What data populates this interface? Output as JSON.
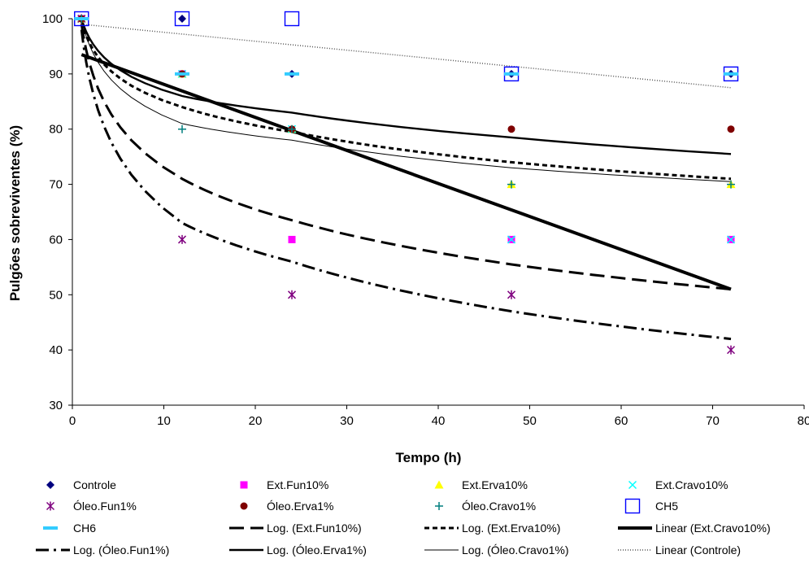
{
  "chart_data": {
    "type": "scatter",
    "xlabel": "Tempo (h)",
    "ylabel": "Pulgões sobreviventes (%)",
    "xlim": [
      0,
      80
    ],
    "ylim": [
      30,
      100
    ],
    "xticks": [
      "0",
      "10",
      "20",
      "30",
      "40",
      "50",
      "60",
      "70",
      "80"
    ],
    "yticks": [
      "30",
      "40",
      "50",
      "60",
      "70",
      "80",
      "90",
      "100"
    ],
    "grid": false,
    "legend_position": "bottom",
    "series": [
      {
        "name": "Controle",
        "marker": "diamond",
        "color": "#00007f",
        "points": [
          [
            1,
            100
          ],
          [
            12,
            100
          ],
          [
            24,
            90
          ],
          [
            48,
            90
          ],
          [
            72,
            90
          ]
        ]
      },
      {
        "name": "Ext.Fun10%",
        "marker": "square",
        "color": "#ff00ff",
        "points": [
          [
            1,
            100
          ],
          [
            12,
            90
          ],
          [
            24,
            60
          ],
          [
            48,
            60
          ],
          [
            72,
            60
          ]
        ]
      },
      {
        "name": "Ext.Erva10%",
        "marker": "triangle",
        "color": "#ffff00",
        "points": [
          [
            1,
            100
          ],
          [
            12,
            90
          ],
          [
            24,
            80
          ],
          [
            48,
            70
          ],
          [
            72,
            70
          ]
        ]
      },
      {
        "name": "Ext.Cravo10%",
        "marker": "x",
        "color": "#00ffff",
        "points": [
          [
            1,
            100
          ],
          [
            12,
            90
          ],
          [
            24,
            80
          ],
          [
            48,
            60
          ],
          [
            72,
            60
          ]
        ]
      },
      {
        "name": "Óleo.Fun1%",
        "marker": "star",
        "color": "#7f007f",
        "points": [
          [
            1,
            100
          ],
          [
            12,
            60
          ],
          [
            24,
            50
          ],
          [
            48,
            50
          ],
          [
            72,
            40
          ]
        ]
      },
      {
        "name": "Óleo.Erva1%",
        "marker": "circle",
        "color": "#7f0000",
        "points": [
          [
            1,
            100
          ],
          [
            12,
            90
          ],
          [
            24,
            80
          ],
          [
            48,
            80
          ],
          [
            72,
            80
          ]
        ]
      },
      {
        "name": "Óleo.Cravo1%",
        "marker": "plus",
        "color": "#007f7f",
        "points": [
          [
            1,
            100
          ],
          [
            12,
            80
          ],
          [
            24,
            80
          ],
          [
            48,
            70
          ],
          [
            72,
            70
          ]
        ]
      },
      {
        "name": "CH5",
        "marker": "open-square",
        "color": "#0000ff",
        "points": [
          [
            1,
            100
          ],
          [
            12,
            100
          ],
          [
            24,
            100
          ],
          [
            48,
            90
          ],
          [
            72,
            90
          ]
        ]
      },
      {
        "name": "CH6",
        "marker": "dash",
        "color": "#33ccff",
        "points": [
          [
            1,
            100
          ],
          [
            12,
            90
          ],
          [
            24,
            90
          ],
          [
            48,
            90
          ],
          [
            72,
            90
          ]
        ]
      }
    ],
    "trendlines": [
      {
        "name": "Log. (Ext.Fun10%)",
        "kind": "log",
        "style": "long-dash",
        "points": [
          [
            1,
            99
          ],
          [
            12,
            71
          ],
          [
            24,
            63.5
          ],
          [
            48,
            55.5
          ],
          [
            72,
            51
          ]
        ]
      },
      {
        "name": "Log. (Ext.Erva10%)",
        "kind": "log",
        "style": "short-dash",
        "points": [
          [
            1,
            99.5
          ],
          [
            12,
            84
          ],
          [
            24,
            79.5
          ],
          [
            48,
            74
          ],
          [
            72,
            71
          ]
        ]
      },
      {
        "name": "Linear (Ext.Cravo10%)",
        "kind": "linear",
        "style": "thick",
        "points": [
          [
            1,
            93.5
          ],
          [
            72,
            51
          ]
        ]
      },
      {
        "name": "Log. (Óleo.Fun1%)",
        "kind": "log",
        "style": "dash-dot",
        "points": [
          [
            1,
            98
          ],
          [
            12,
            63
          ],
          [
            24,
            56
          ],
          [
            48,
            47
          ],
          [
            72,
            42
          ]
        ]
      },
      {
        "name": "Log. (Óleo.Erva1%)",
        "kind": "log",
        "style": "medium",
        "points": [
          [
            1,
            100
          ],
          [
            12,
            86
          ],
          [
            24,
            83
          ],
          [
            48,
            78.5
          ],
          [
            72,
            75.5
          ]
        ]
      },
      {
        "name": "Log. (Óleo.Cravo1%)",
        "kind": "log",
        "style": "thin",
        "points": [
          [
            1,
            100
          ],
          [
            12,
            81
          ],
          [
            24,
            78
          ],
          [
            48,
            73
          ],
          [
            72,
            70.5
          ]
        ]
      },
      {
        "name": "Linear (Controle)",
        "kind": "linear",
        "style": "dotted",
        "points": [
          [
            1,
            99
          ],
          [
            72,
            87.5
          ]
        ]
      }
    ]
  }
}
